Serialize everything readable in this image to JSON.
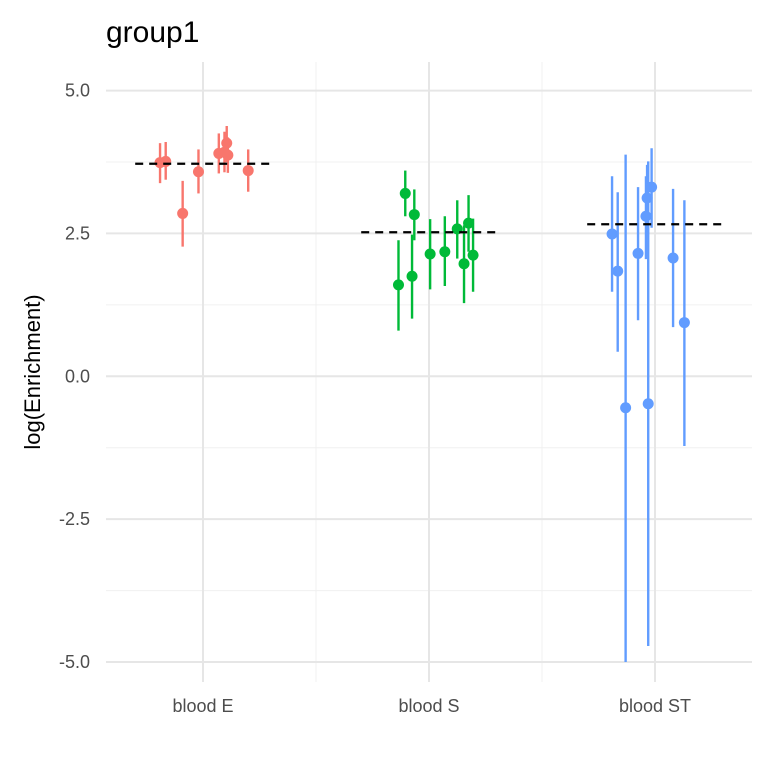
{
  "chart_data": {
    "type": "scatter",
    "title": "group1",
    "xlabel": "",
    "ylabel": "log(Enrichment)",
    "categories": [
      "blood E",
      "blood S",
      "blood ST"
    ],
    "ylim": [
      -5.35,
      5.5
    ],
    "yticks": [
      5.0,
      2.5,
      0.0,
      -2.5,
      -5.0
    ],
    "ytick_labels": [
      "5.0",
      "2.5",
      "0.0",
      "-2.5",
      "-5.0"
    ],
    "grid": true,
    "legend": "none",
    "series": [
      {
        "category": "blood E",
        "color": "#F8766D",
        "mean": 3.72,
        "points": [
          {
            "offset": -0.38,
            "y": 3.74,
            "lo": 3.38,
            "hi": 4.08
          },
          {
            "offset": -0.33,
            "y": 3.76,
            "lo": 3.44,
            "hi": 4.1
          },
          {
            "offset": -0.18,
            "y": 2.85,
            "lo": 2.27,
            "hi": 3.42
          },
          {
            "offset": -0.04,
            "y": 3.58,
            "lo": 3.2,
            "hi": 3.97
          },
          {
            "offset": 0.14,
            "y": 3.9,
            "lo": 3.55,
            "hi": 4.25
          },
          {
            "offset": 0.19,
            "y": 3.92,
            "lo": 3.57,
            "hi": 4.28
          },
          {
            "offset": 0.21,
            "y": 4.08,
            "lo": 3.75,
            "hi": 4.38
          },
          {
            "offset": 0.22,
            "y": 3.87,
            "lo": 3.56,
            "hi": 4.18
          },
          {
            "offset": 0.4,
            "y": 3.6,
            "lo": 3.23,
            "hi": 3.97
          }
        ]
      },
      {
        "category": "blood S",
        "color": "#00BA38",
        "mean": 2.52,
        "points": [
          {
            "offset": -0.27,
            "y": 1.6,
            "lo": 0.8,
            "hi": 2.38
          },
          {
            "offset": -0.21,
            "y": 3.2,
            "lo": 2.8,
            "hi": 3.6
          },
          {
            "offset": -0.15,
            "y": 1.75,
            "lo": 1.01,
            "hi": 2.48
          },
          {
            "offset": -0.13,
            "y": 2.83,
            "lo": 2.38,
            "hi": 3.27
          },
          {
            "offset": 0.01,
            "y": 2.14,
            "lo": 1.52,
            "hi": 2.75
          },
          {
            "offset": 0.14,
            "y": 2.18,
            "lo": 1.58,
            "hi": 2.8
          },
          {
            "offset": 0.25,
            "y": 2.58,
            "lo": 2.06,
            "hi": 3.08
          },
          {
            "offset": 0.31,
            "y": 1.97,
            "lo": 1.28,
            "hi": 2.64
          },
          {
            "offset": 0.35,
            "y": 2.68,
            "lo": 2.18,
            "hi": 3.17
          },
          {
            "offset": 0.39,
            "y": 2.12,
            "lo": 1.48,
            "hi": 2.76
          }
        ]
      },
      {
        "category": "blood ST",
        "color": "#619CFF",
        "mean": 2.66,
        "points": [
          {
            "offset": -0.38,
            "y": 2.49,
            "lo": 1.48,
            "hi": 3.5
          },
          {
            "offset": -0.33,
            "y": 1.84,
            "lo": 0.43,
            "hi": 3.22
          },
          {
            "offset": -0.26,
            "y": -0.55,
            "lo": -5.0,
            "hi": 3.88
          },
          {
            "offset": -0.15,
            "y": 2.15,
            "lo": 0.98,
            "hi": 3.31
          },
          {
            "offset": -0.08,
            "y": 2.8,
            "lo": 2.05,
            "hi": 3.5
          },
          {
            "offset": -0.07,
            "y": 3.12,
            "lo": 2.5,
            "hi": 3.7
          },
          {
            "offset": -0.06,
            "y": -0.48,
            "lo": -4.72,
            "hi": 3.76
          },
          {
            "offset": -0.03,
            "y": 3.31,
            "lo": 2.6,
            "hi": 3.99
          },
          {
            "offset": 0.16,
            "y": 2.07,
            "lo": 0.86,
            "hi": 3.28
          },
          {
            "offset": 0.26,
            "y": 0.94,
            "lo": -1.22,
            "hi": 3.08
          }
        ]
      }
    ]
  }
}
